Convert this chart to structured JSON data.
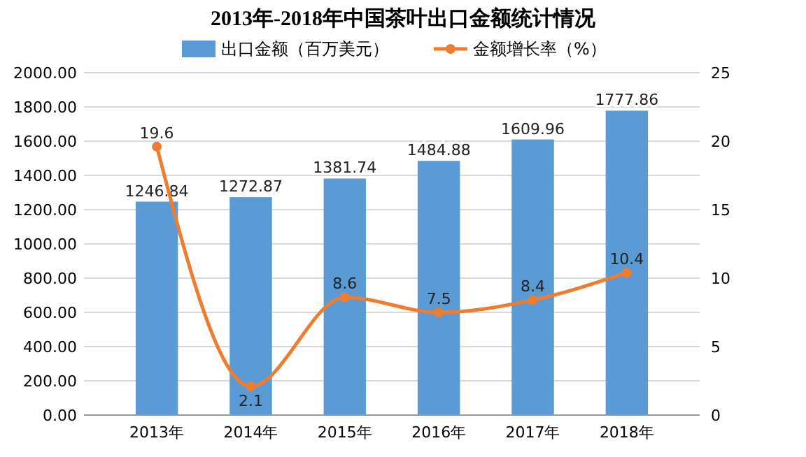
{
  "chart_data": {
    "type": "bar",
    "title": "2013年-2018年中国茶叶出口金额统计情况",
    "categories": [
      "2013年",
      "2014年",
      "2015年",
      "2016年",
      "2017年",
      "2018年"
    ],
    "series": [
      {
        "name": "出口金额（百万美元）",
        "color": "#5b9bd5",
        "values": [
          1246.84,
          1272.87,
          1381.74,
          1484.88,
          1609.96,
          1777.86
        ]
      },
      {
        "name": "金额增长率（%）",
        "type": "line",
        "axis": "y2",
        "color": "#ed7d31",
        "values": [
          19.6,
          2.1,
          8.6,
          7.5,
          8.4,
          10.4
        ]
      }
    ],
    "ylim": [
      0,
      2000
    ],
    "yticks": [
      {
        "value": 0,
        "label": "0.00"
      },
      {
        "value": 200,
        "label": "200.00"
      },
      {
        "value": 400,
        "label": "400.00"
      },
      {
        "value": 600,
        "label": "600.00"
      },
      {
        "value": 800,
        "label": "800.00"
      },
      {
        "value": 1000,
        "label": "1000.00"
      },
      {
        "value": 1200,
        "label": "1200.00"
      },
      {
        "value": 1400,
        "label": "1400.00"
      },
      {
        "value": 1600,
        "label": "1600.00"
      },
      {
        "value": 1800,
        "label": "1800.00"
      },
      {
        "value": 2000,
        "label": "2000.00"
      }
    ],
    "y2lim": [
      0,
      25
    ],
    "y2ticks": [
      0,
      5,
      10,
      15,
      20,
      25
    ],
    "grid": "y",
    "legend": "top",
    "marker": "circle",
    "data_labels": true
  }
}
